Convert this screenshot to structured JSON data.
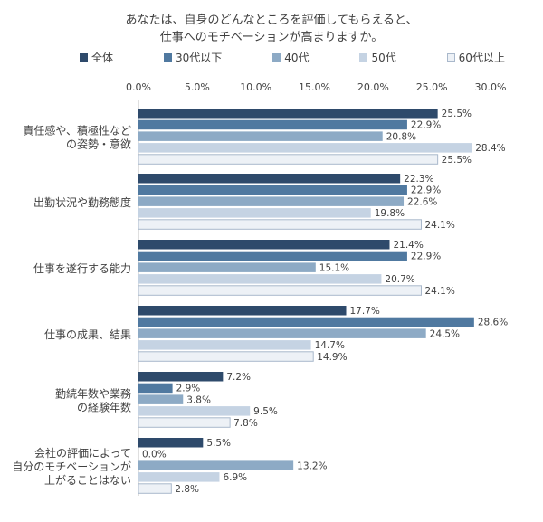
{
  "chart_data": {
    "type": "bar",
    "orientation": "horizontal",
    "title_lines": [
      "あなたは、自身のどんなところを評価してもらえると、",
      "仕事へのモチベーションが高まりますか。"
    ],
    "categories": [
      [
        "責任感や、積極性など",
        "の姿勢・意欲"
      ],
      [
        "出勤状況や勤務態度"
      ],
      [
        "仕事を遂行する能力"
      ],
      [
        "仕事の成果、結果"
      ],
      [
        "勤続年数や業務",
        "の経験年数"
      ],
      [
        "会社の評価によって",
        "自分のモチベーションが",
        "上がることはない"
      ]
    ],
    "series": [
      {
        "name": "全体",
        "values": [
          25.5,
          22.3,
          21.4,
          17.7,
          7.2,
          5.5
        ]
      },
      {
        "name": "30代以下",
        "values": [
          22.9,
          22.9,
          22.9,
          28.6,
          2.9,
          0.0
        ]
      },
      {
        "name": "40代",
        "values": [
          20.8,
          22.6,
          15.1,
          24.5,
          3.8,
          13.2
        ]
      },
      {
        "name": "50代",
        "values": [
          28.4,
          19.8,
          20.7,
          14.7,
          9.5,
          6.9
        ]
      },
      {
        "name": "60代以上",
        "values": [
          25.5,
          24.1,
          24.1,
          14.9,
          7.8,
          2.8
        ]
      }
    ],
    "x_ticks": [
      "0.0%",
      "5.0%",
      "10.0%",
      "15.0%",
      "20.0%",
      "25.0%",
      "30.0%"
    ],
    "xlim": [
      0,
      30
    ],
    "value_suffix": "%",
    "legend_position": "top",
    "grid": false,
    "colors": [
      "#2e4a6b",
      "#5079a0",
      "#8daac5",
      "#c5d3e3",
      "#edf1f6"
    ]
  }
}
